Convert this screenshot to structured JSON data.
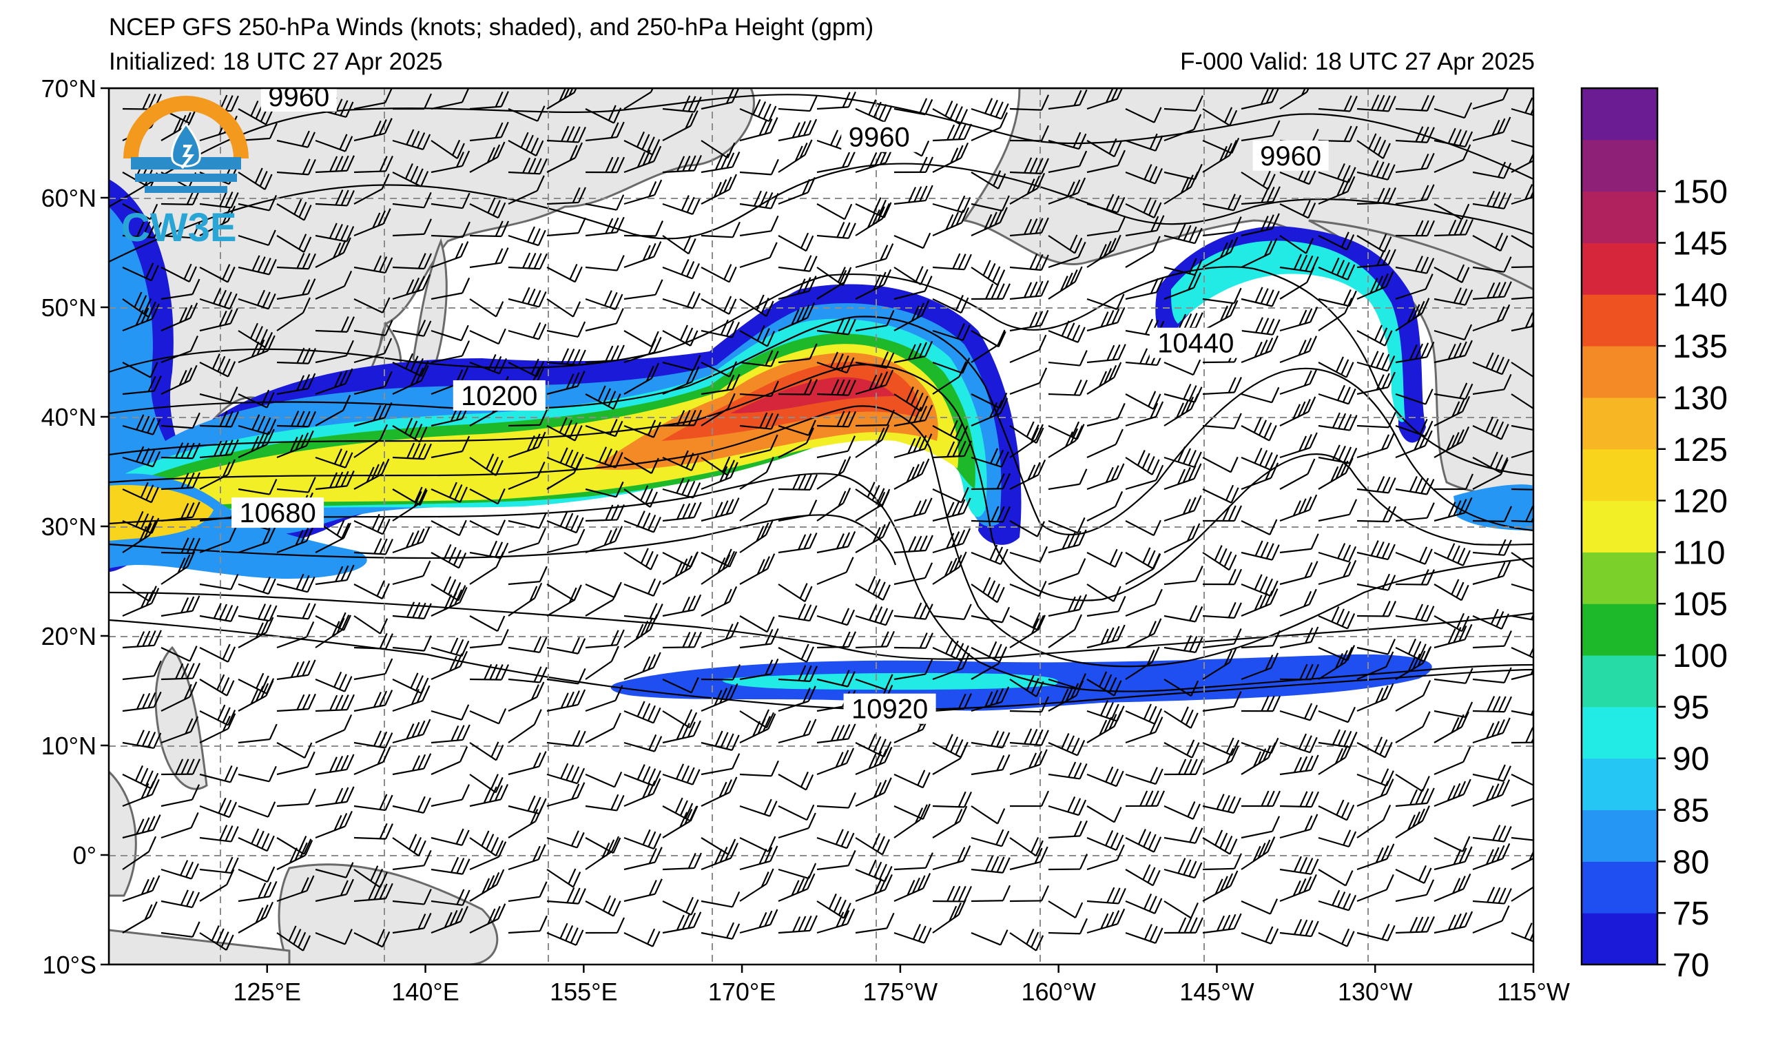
{
  "titles": {
    "line1": "NCEP GFS 250-hPa Winds (knots; shaded), and 250-hPa Height (gpm)",
    "line2": "Initialized: 18 UTC 27 Apr 2025",
    "line3": "F-000  Valid: 18 UTC 27 Apr 2025"
  },
  "logo": {
    "text": "CW3E",
    "colors": {
      "arc": "#f39a1e",
      "body": "#2a8cc8"
    }
  },
  "map_data": {
    "lon_labels": [
      "125°E",
      "140°E",
      "155°E",
      "170°E",
      "175°W",
      "160°W",
      "145°W",
      "130°W",
      "115°W"
    ],
    "lat_labels": [
      "70°N",
      "60°N",
      "50°N",
      "40°N",
      "30°N",
      "20°N",
      "10°N",
      "0°",
      "10°S"
    ],
    "contour_labels": [
      {
        "text": "9960",
        "lat": 69.0,
        "lon": 128
      },
      {
        "text": "9960",
        "lat": 65.3,
        "lon": -177
      },
      {
        "text": "9960",
        "lat": 63.6,
        "lon": -138
      },
      {
        "text": "10200",
        "lat": 41.7,
        "lon": 147
      },
      {
        "text": "10440",
        "lat": 46.5,
        "lon": -147
      },
      {
        "text": "10680",
        "lat": 31.0,
        "lon": 126
      },
      {
        "text": "10920",
        "lat": 13.1,
        "lon": -176
      }
    ]
  },
  "colorbar": {
    "ticks": [
      "70",
      "75",
      "80",
      "85",
      "90",
      "95",
      "100",
      "105",
      "110",
      "120",
      "125",
      "130",
      "135",
      "140",
      "145",
      "150"
    ],
    "colors": [
      "#1a1ad8",
      "#1f4ff0",
      "#2596f4",
      "#25c6f3",
      "#22eae4",
      "#27dba6",
      "#1db92a",
      "#7bd02a",
      "#f2ef27",
      "#f9d41d",
      "#f7b623",
      "#f48a25",
      "#ef5221",
      "#d6263b",
      "#b0225e",
      "#8e2078",
      "#6c1c92"
    ]
  },
  "colors": {
    "land": "#e6e6e6",
    "coast": "#6a6a6a",
    "grid": "#8c8c8c"
  }
}
